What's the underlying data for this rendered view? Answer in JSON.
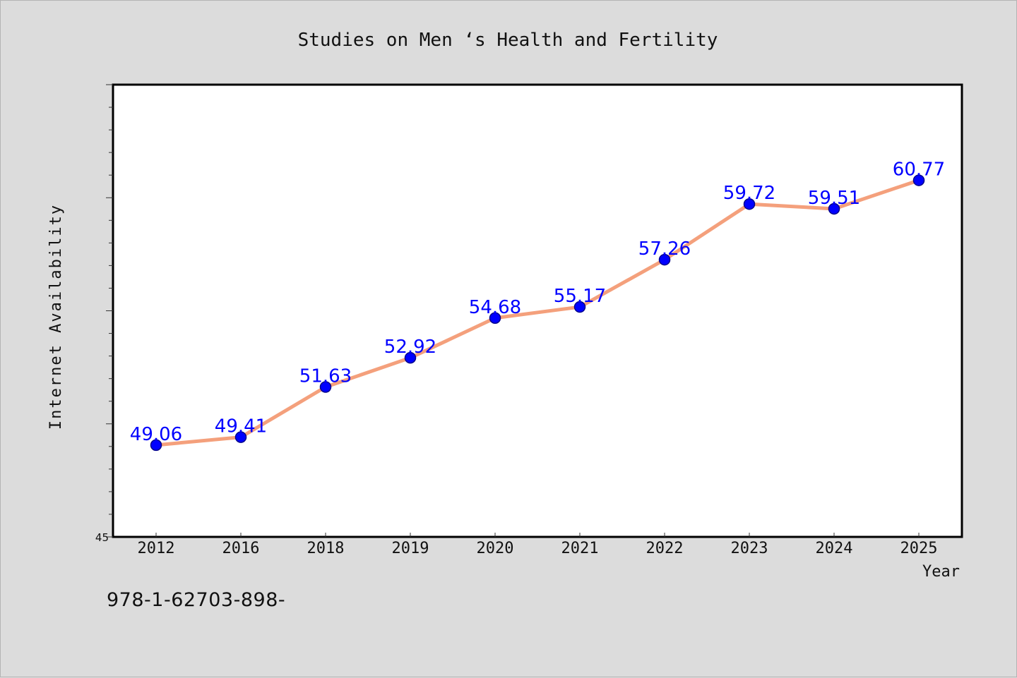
{
  "chart_data": {
    "type": "line",
    "title": "Studies on Men ‘s Health and Fertility",
    "xlabel": "Year",
    "ylabel": "Internet Availability",
    "categories": [
      "2012",
      "2016",
      "2018",
      "2019",
      "2020",
      "2021",
      "2022",
      "2023",
      "2024",
      "2025"
    ],
    "series": [
      {
        "values": [
          49.06,
          49.41,
          51.63,
          52.92,
          54.68,
          55.17,
          57.26,
          59.72,
          59.51,
          60.77
        ],
        "value_labels": [
          "49.06",
          "49.41",
          "51.63",
          "52.92",
          "54.68",
          "55.17",
          "57.26",
          "59.72",
          "59.51",
          "60.77"
        ]
      }
    ],
    "ylim": [
      45,
      65
    ],
    "y_tick_labels": [
      {
        "value": 45,
        "label": "45"
      }
    ],
    "y_minor_step": 1,
    "y_major_step": 5,
    "grid": false,
    "legend": "none",
    "colors": {
      "line": "#f4a07c",
      "marker": "#0000ff",
      "marker_edge": "#00008b",
      "value_label": "#0000ff",
      "plot_bg": "#ffffff",
      "page_bg": "#dcdcdc"
    }
  },
  "footer": {
    "code": "978-1-62703-898-"
  }
}
